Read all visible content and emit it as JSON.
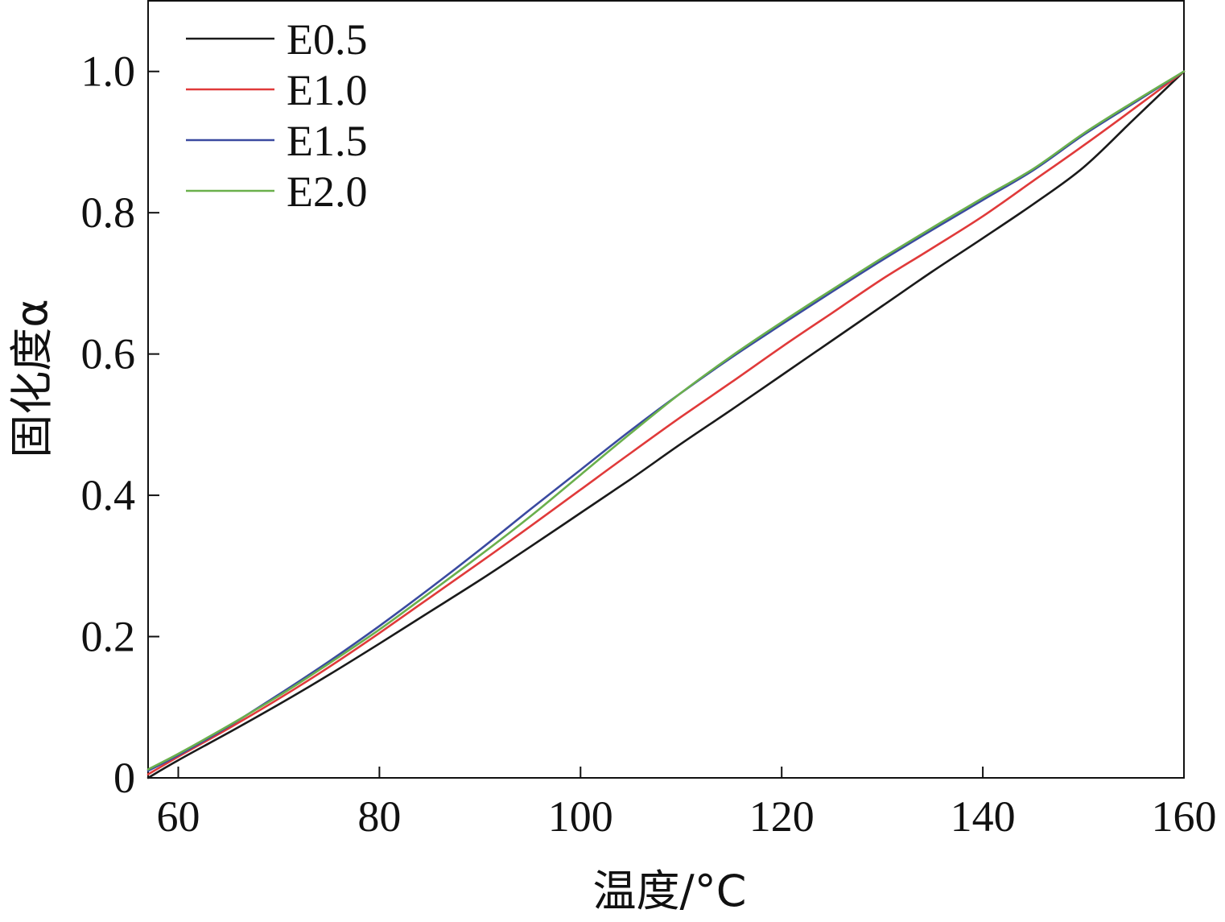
{
  "chart_data": {
    "type": "line",
    "title": "",
    "xlabel": "温度/°C",
    "ylabel": "固化度α",
    "xlim": [
      57,
      160
    ],
    "ylim": [
      0,
      1.1
    ],
    "xticks": [
      60,
      80,
      100,
      120,
      140,
      160
    ],
    "yticks": [
      0,
      0.2,
      0.4,
      0.6,
      0.8,
      1.0
    ],
    "ytick_labels": [
      "0",
      "0.2",
      "0.4",
      "0.6",
      "0.8",
      "1.0"
    ],
    "grid": false,
    "legend_position": "top-left",
    "series": [
      {
        "name": "E0.5",
        "color": "#1a1a1a",
        "x": [
          57,
          60,
          65,
          70,
          75,
          80,
          85,
          90,
          95,
          100,
          105,
          110,
          115,
          120,
          125,
          130,
          135,
          140,
          145,
          150,
          155,
          160
        ],
        "y": [
          0.0,
          0.025,
          0.064,
          0.104,
          0.146,
          0.19,
          0.235,
          0.28,
          0.327,
          0.375,
          0.423,
          0.473,
          0.521,
          0.57,
          0.619,
          0.668,
          0.717,
          0.764,
          0.812,
          0.864,
          0.932,
          1.0
        ]
      },
      {
        "name": "E1.0",
        "color": "#e03a3a",
        "x": [
          57,
          60,
          65,
          70,
          75,
          80,
          85,
          90,
          95,
          100,
          105,
          110,
          115,
          120,
          125,
          130,
          135,
          140,
          145,
          150,
          155,
          160
        ],
        "y": [
          0.005,
          0.03,
          0.07,
          0.112,
          0.157,
          0.205,
          0.255,
          0.305,
          0.356,
          0.408,
          0.46,
          0.511,
          0.56,
          0.61,
          0.658,
          0.706,
          0.75,
          0.795,
          0.845,
          0.895,
          0.947,
          1.0
        ]
      },
      {
        "name": "E1.5",
        "color": "#3a4aa0",
        "x": [
          57,
          60,
          65,
          70,
          75,
          80,
          85,
          90,
          95,
          100,
          105,
          110,
          115,
          120,
          125,
          130,
          135,
          140,
          145,
          150,
          155,
          160
        ],
        "y": [
          0.01,
          0.032,
          0.073,
          0.118,
          0.165,
          0.215,
          0.268,
          0.323,
          0.38,
          0.436,
          0.492,
          0.545,
          0.595,
          0.642,
          0.688,
          0.733,
          0.776,
          0.818,
          0.86,
          0.91,
          0.955,
          1.0
        ]
      },
      {
        "name": "E2.0",
        "color": "#6ab04c",
        "x": [
          57,
          60,
          65,
          70,
          75,
          80,
          85,
          90,
          95,
          100,
          105,
          110,
          115,
          120,
          125,
          130,
          135,
          140,
          145,
          150,
          155,
          160
        ],
        "y": [
          0.012,
          0.034,
          0.074,
          0.116,
          0.162,
          0.21,
          0.262,
          0.315,
          0.37,
          0.429,
          0.488,
          0.545,
          0.597,
          0.645,
          0.691,
          0.736,
          0.779,
          0.821,
          0.862,
          0.912,
          0.957,
          1.0
        ]
      }
    ]
  }
}
